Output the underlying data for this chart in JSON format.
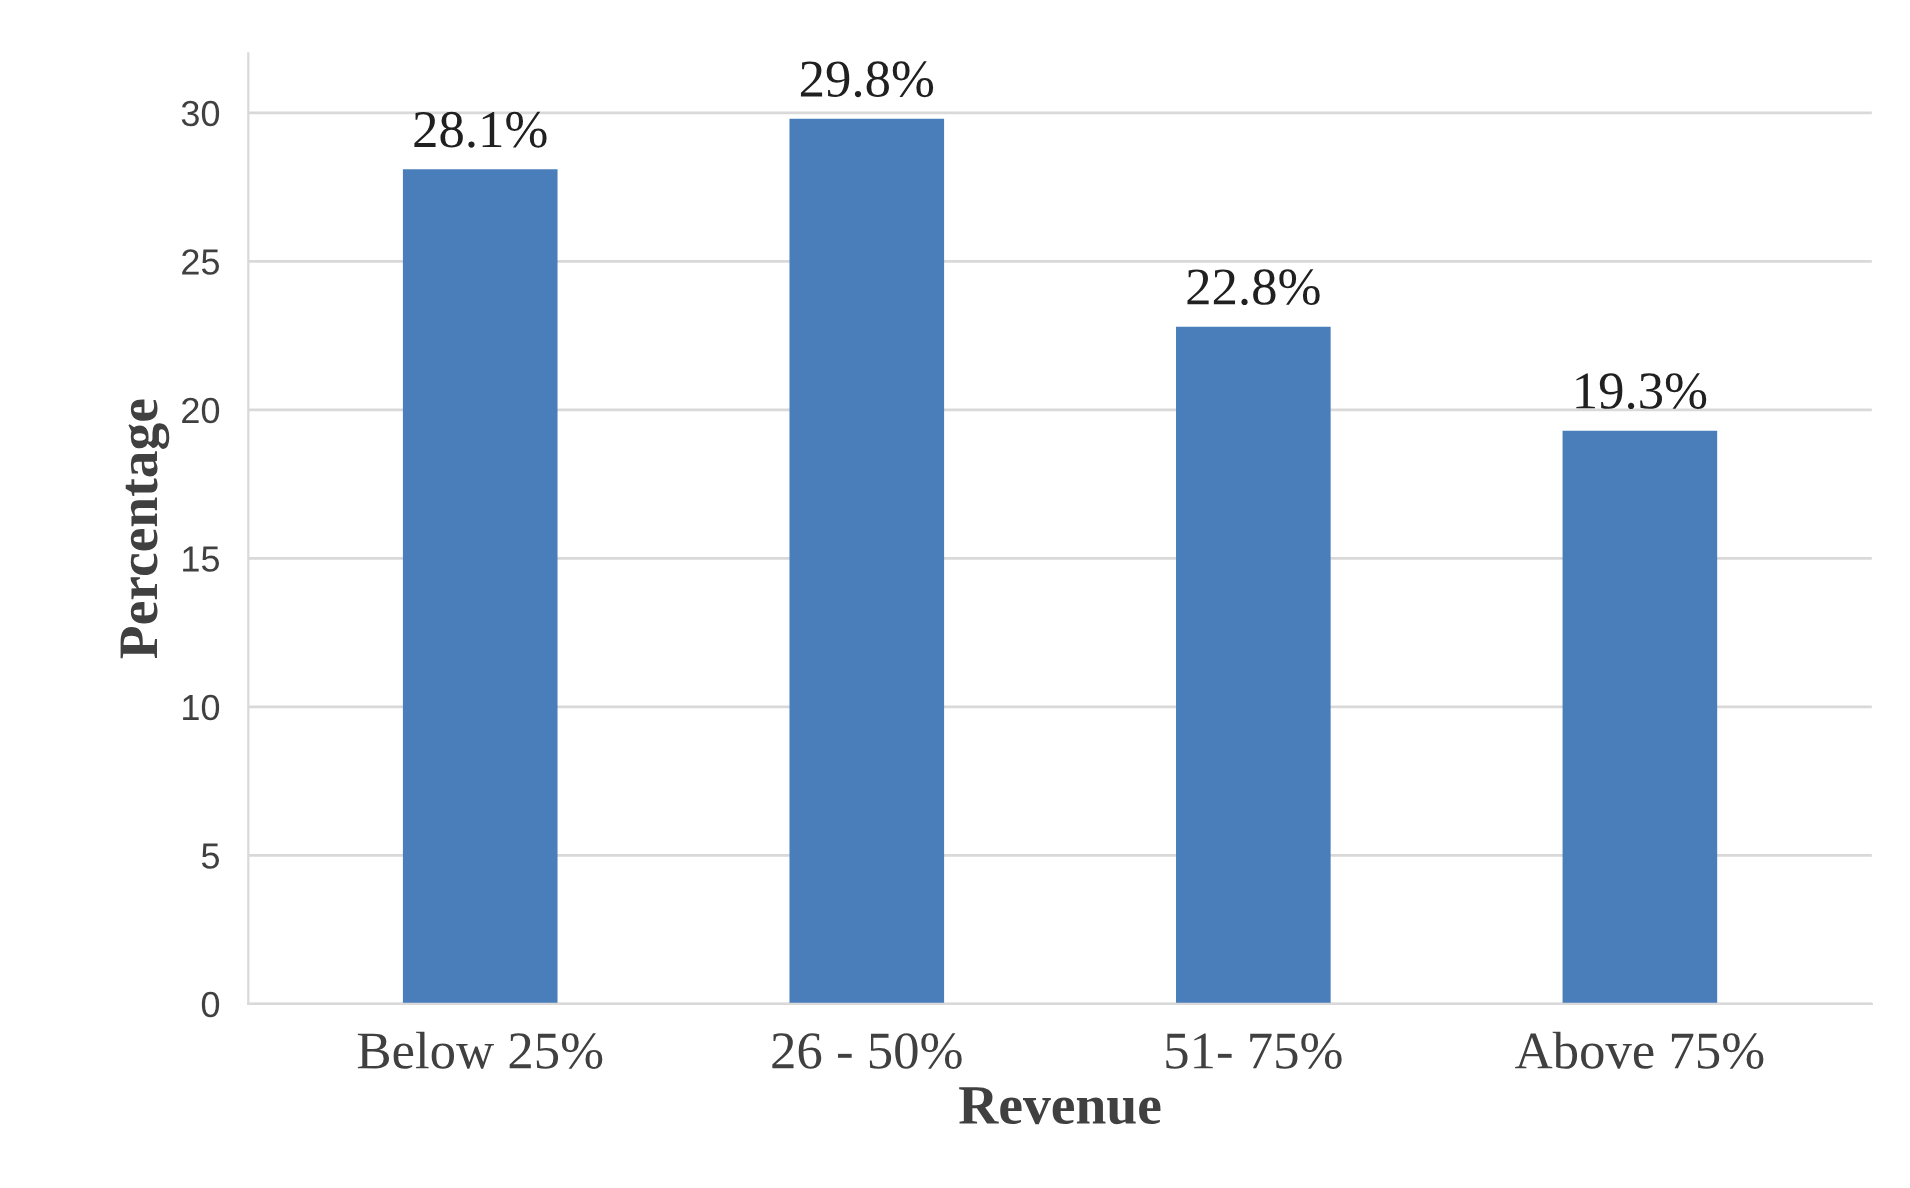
{
  "chart_data": {
    "type": "bar",
    "xlabel": "Revenue",
    "ylabel": "Percentage",
    "categories": [
      "Below 25%",
      "26 - 50%",
      "51- 75%",
      "Above 75%"
    ],
    "values": [
      28.1,
      29.8,
      22.8,
      19.3
    ],
    "value_labels": [
      "28.1%",
      "29.8%",
      "22.8%",
      "19.3%"
    ],
    "color": "#4a7ebb",
    "ylim": [
      0,
      32
    ],
    "yticks": [
      0,
      5,
      10,
      15,
      20,
      25,
      30
    ],
    "grid": "y",
    "legend": false
  }
}
